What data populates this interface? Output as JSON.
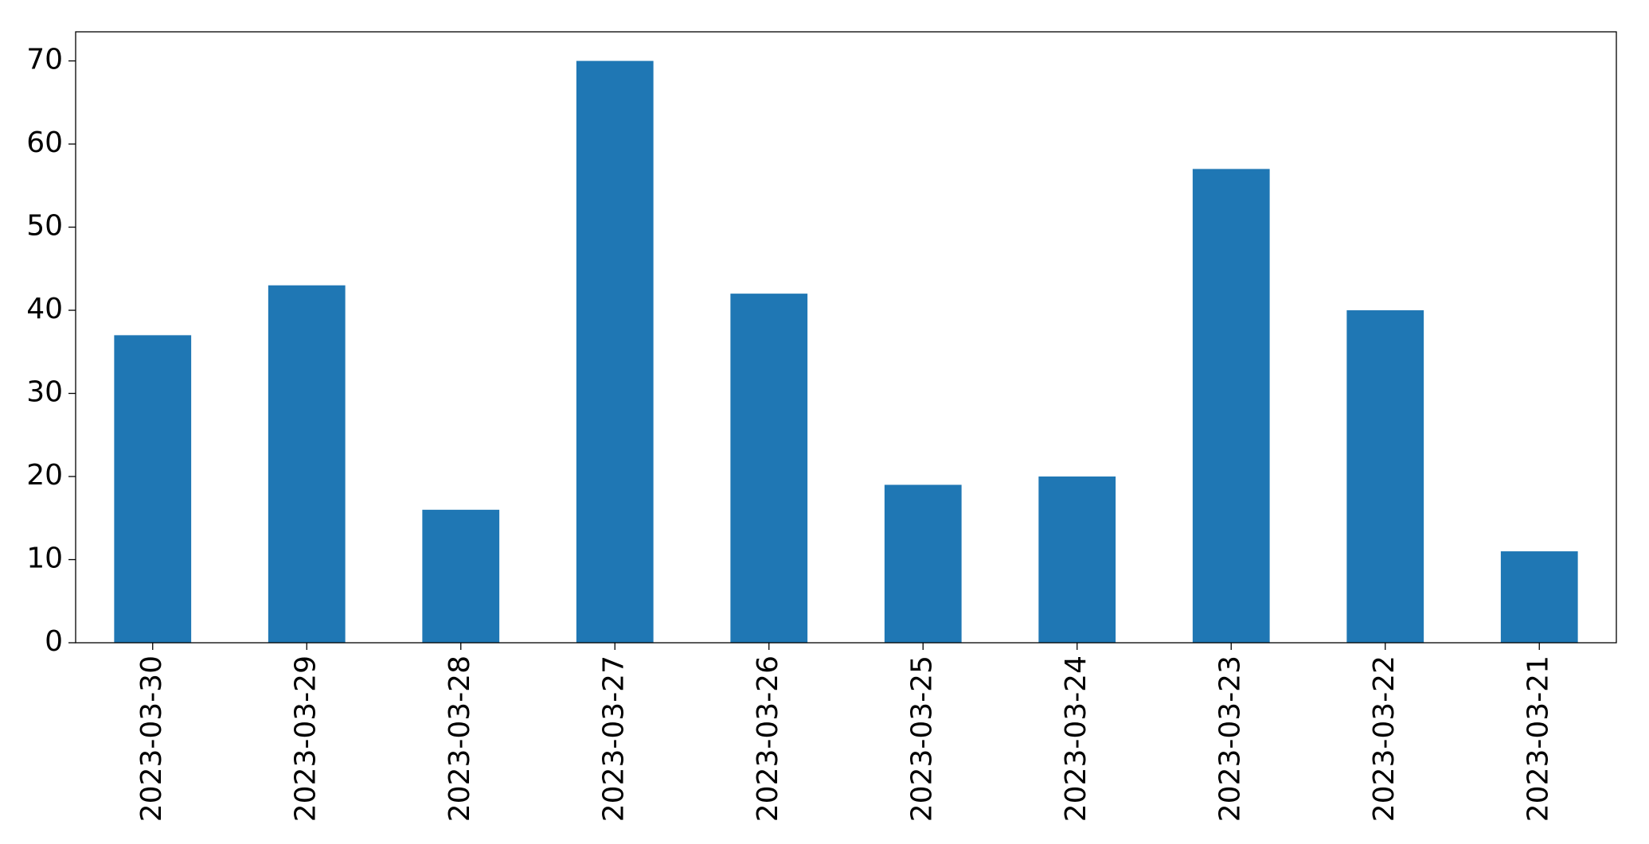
{
  "chart_data": {
    "type": "bar",
    "categories": [
      "2023-03-30",
      "2023-03-29",
      "2023-03-28",
      "2023-03-27",
      "2023-03-26",
      "2023-03-25",
      "2023-03-24",
      "2023-03-23",
      "2023-03-22",
      "2023-03-21"
    ],
    "values": [
      37,
      43,
      16,
      70,
      42,
      19,
      20,
      57,
      40,
      11
    ],
    "color": "#1f77b4",
    "ylim": [
      0,
      73.5
    ],
    "yticks": [
      0,
      10,
      20,
      30,
      40,
      50,
      60,
      70
    ],
    "grid": false
  }
}
